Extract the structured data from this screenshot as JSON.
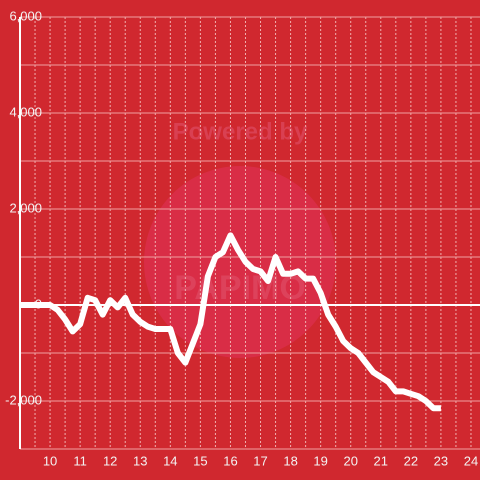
{
  "chart_data": {
    "type": "line",
    "watermark": [
      "Powered by",
      "PAPIMO"
    ],
    "x": [
      9,
      10,
      10.25,
      10.5,
      10.75,
      11,
      11.25,
      11.5,
      11.75,
      12,
      12.25,
      12.5,
      12.75,
      13,
      13.25,
      13.5,
      14,
      14.25,
      14.5,
      14.75,
      15,
      15.25,
      15.5,
      15.75,
      16,
      16.25,
      16.5,
      16.75,
      17,
      17.25,
      17.5,
      17.75,
      18,
      18.25,
      18.5,
      18.75,
      19,
      19.25,
      19.5,
      19.75,
      20,
      20.25,
      20.5,
      20.75,
      21,
      21.25,
      21.5,
      21.75,
      22,
      22.25,
      22.5,
      22.75,
      23
    ],
    "series": [
      {
        "color": "#ffffff",
        "values": [
          0,
          0,
          -100,
          -300,
          -550,
          -400,
          150,
          100,
          -200,
          100,
          -50,
          150,
          -200,
          -350,
          -450,
          -500,
          -500,
          -1000,
          -1200,
          -800,
          -400,
          600,
          1000,
          1100,
          1450,
          1150,
          900,
          750,
          700,
          500,
          1000,
          650,
          650,
          700,
          550,
          550,
          250,
          -200,
          -450,
          -750,
          -900,
          -1000,
          -1200,
          -1400,
          -1500,
          -1600,
          -1800,
          -1800,
          -1850,
          -1900,
          -2000,
          -2150,
          -2150
        ]
      }
    ],
    "xlim": [
      9,
      24.3
    ],
    "ylim": [
      -3000,
      6000
    ],
    "xticks": [
      10,
      11,
      12,
      13,
      14,
      15,
      16,
      17,
      18,
      19,
      20,
      21,
      22,
      23,
      24
    ],
    "x_grid": [
      9.5,
      10,
      10.5,
      11,
      11.5,
      12,
      12.5,
      13,
      13.5,
      14,
      14.5,
      15,
      15.5,
      16,
      16.5,
      17,
      17.5,
      18,
      18.5,
      19,
      19.5,
      20,
      20.5,
      21,
      21.5,
      22,
      22.5,
      23,
      23.5,
      24
    ],
    "yticks": [
      {
        "value": -2000,
        "label": "-2,000"
      },
      0,
      {
        "value": 2000,
        "label": "2,000"
      },
      {
        "value": 4000,
        "label": "4,000"
      },
      {
        "value": 6000,
        "label": "6,000"
      }
    ],
    "y_minor_grid": [
      -3000,
      -1000,
      1000,
      3000,
      5000
    ],
    "grid": true
  }
}
